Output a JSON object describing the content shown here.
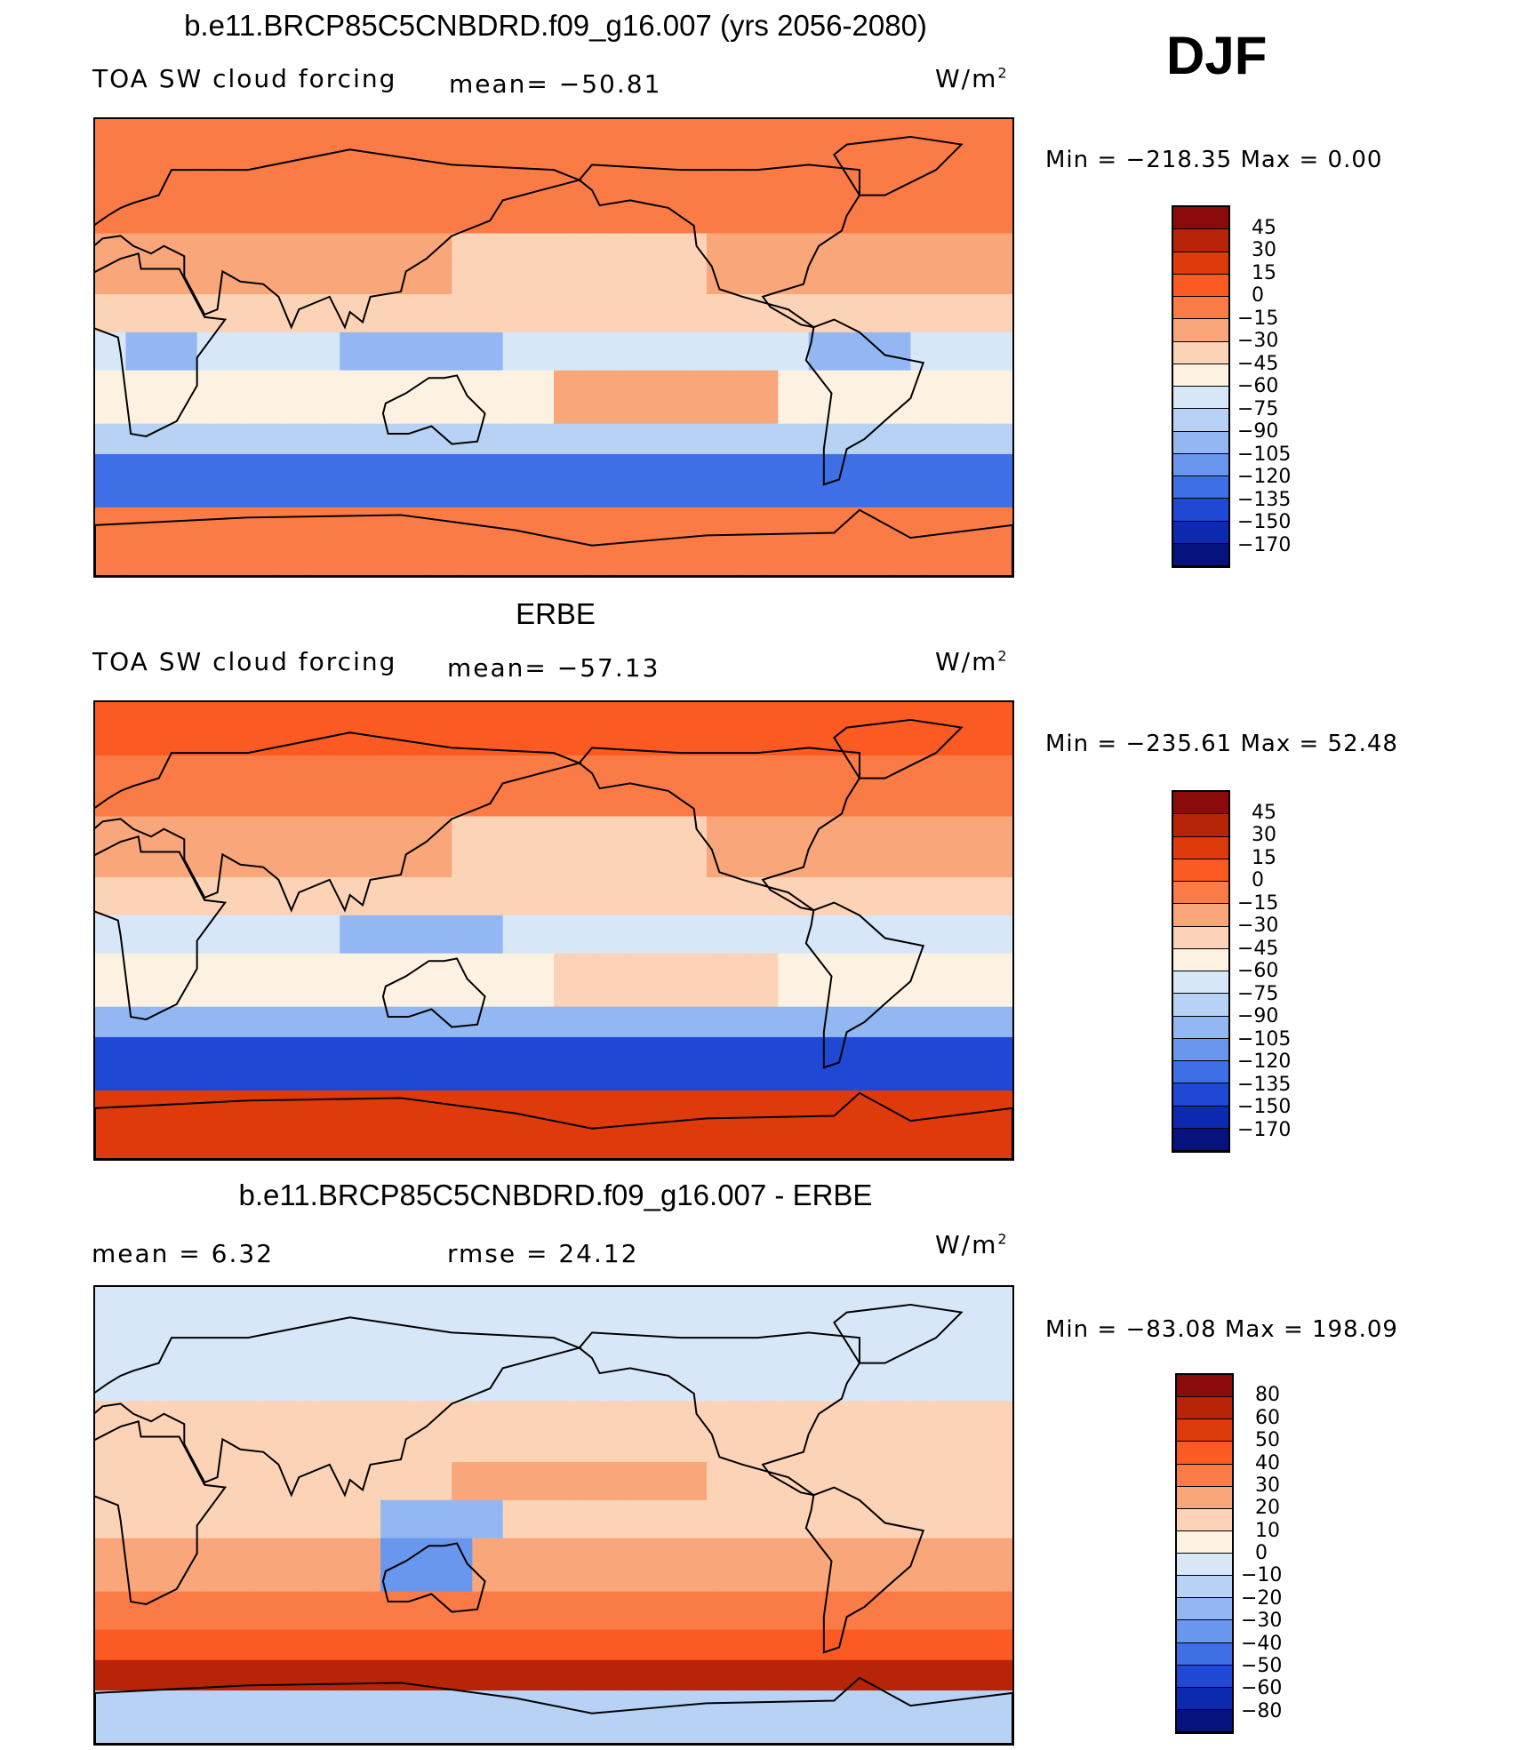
{
  "season": "DJF",
  "panels": [
    {
      "id": "model",
      "title": "b.e11.BRCP85C5CNBDRD.f09_g16.007 (yrs 2056-2080)",
      "left_label": "TOA SW cloud forcing",
      "mid_label": "mean= −50.81",
      "units_base": "W/m",
      "units_sup": "2",
      "minmax": "Min  =  −218.35  Max  =     0.00",
      "colorbar_labels": [
        "45",
        "30",
        "15",
        "0",
        "−15",
        "−30",
        "−45",
        "−60",
        "−75",
        "−90",
        "−105",
        "−120",
        "−135",
        "−150",
        "−170"
      ],
      "colorbar_colors": [
        "#8b0a0a",
        "#b82408",
        "#de3a0c",
        "#fb5a22",
        "#fb7b46",
        "#f9a67a",
        "#fcd3b6",
        "#fdf2e2",
        "#d7e7f7",
        "#b7d2f4",
        "#93b7f2",
        "#6a97ee",
        "#3f6fe6",
        "#1f48d4",
        "#0c2ab0",
        "#06137f"
      ],
      "field": "model"
    },
    {
      "id": "obs",
      "title": "ERBE",
      "left_label": "TOA SW cloud forcing",
      "mid_label": "mean= −57.13",
      "units_base": "W/m",
      "units_sup": "2",
      "minmax": "Min  =  −235.61  Max  =    52.48",
      "colorbar_labels": [
        "45",
        "30",
        "15",
        "0",
        "−15",
        "−30",
        "−45",
        "−60",
        "−75",
        "−90",
        "−105",
        "−120",
        "−135",
        "−150",
        "−170"
      ],
      "colorbar_colors": [
        "#8b0a0a",
        "#b82408",
        "#de3a0c",
        "#fb5a22",
        "#fb7b46",
        "#f9a67a",
        "#fcd3b6",
        "#fdf2e2",
        "#d7e7f7",
        "#b7d2f4",
        "#93b7f2",
        "#6a97ee",
        "#3f6fe6",
        "#1f48d4",
        "#0c2ab0",
        "#06137f"
      ],
      "field": "obs"
    },
    {
      "id": "diff",
      "title": "b.e11.BRCP85C5CNBDRD.f09_g16.007 - ERBE",
      "left_label": "mean  =     6.32",
      "mid_label": "rmse  =   24.12",
      "units_base": "W/m",
      "units_sup": "2",
      "minmax": "Min  =  −83.08  Max  =  198.09",
      "colorbar_labels": [
        "80",
        "60",
        "50",
        "40",
        "30",
        "20",
        "10",
        "0",
        "−10",
        "−20",
        "−30",
        "−40",
        "−50",
        "−60",
        "−80"
      ],
      "colorbar_colors": [
        "#8b0a0a",
        "#b82408",
        "#de3a0c",
        "#fb5a22",
        "#fb7b46",
        "#f9a67a",
        "#fcd3b6",
        "#fdf2e2",
        "#d7e7f7",
        "#b7d2f4",
        "#93b7f2",
        "#6a97ee",
        "#3f6fe6",
        "#1f48d4",
        "#0c2ab0",
        "#06137f"
      ],
      "field": "diff"
    }
  ]
}
